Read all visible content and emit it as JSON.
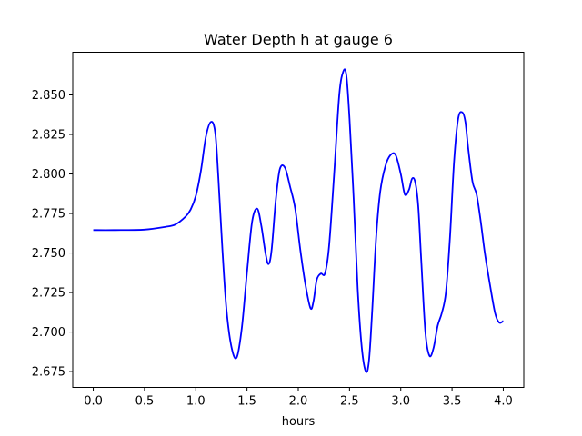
{
  "chart_data": {
    "type": "line",
    "title": "Water Depth h at gauge 6",
    "xlabel": "hours",
    "ylabel": "",
    "xlim": [
      -0.2,
      4.2
    ],
    "ylim": [
      2.665,
      2.877
    ],
    "xticks": [
      0.0,
      0.5,
      1.0,
      1.5,
      2.0,
      2.5,
      3.0,
      3.5,
      4.0
    ],
    "xtick_labels": [
      "0.0",
      "0.5",
      "1.0",
      "1.5",
      "2.0",
      "2.5",
      "3.0",
      "3.5",
      "4.0"
    ],
    "yticks": [
      2.675,
      2.7,
      2.725,
      2.75,
      2.775,
      2.8,
      2.825,
      2.85
    ],
    "ytick_labels": [
      "2.675",
      "2.700",
      "2.725",
      "2.750",
      "2.775",
      "2.800",
      "2.825",
      "2.850"
    ],
    "grid": false,
    "series": [
      {
        "color": "#0000ff",
        "x": [
          0.0,
          0.2,
          0.5,
          0.7,
          0.8,
          0.9,
          0.95,
          1.0,
          1.05,
          1.1,
          1.15,
          1.19,
          1.22,
          1.26,
          1.3,
          1.35,
          1.4,
          1.45,
          1.5,
          1.55,
          1.6,
          1.64,
          1.68,
          1.71,
          1.74,
          1.78,
          1.82,
          1.87,
          1.92,
          1.97,
          2.02,
          2.07,
          2.12,
          2.15,
          2.18,
          2.22,
          2.26,
          2.3,
          2.35,
          2.4,
          2.44,
          2.47,
          2.5,
          2.54,
          2.58,
          2.62,
          2.66,
          2.69,
          2.72,
          2.76,
          2.8,
          2.85,
          2.9,
          2.95,
          3.0,
          3.04,
          3.08,
          3.11,
          3.14,
          3.17,
          3.2,
          3.24,
          3.28,
          3.32,
          3.36,
          3.4,
          3.44,
          3.48,
          3.52,
          3.56,
          3.6,
          3.63,
          3.66,
          3.7,
          3.74,
          3.78,
          3.82,
          3.87,
          3.92,
          3.96,
          4.0
        ],
        "y": [
          2.7645,
          2.7645,
          2.7648,
          2.7665,
          2.768,
          2.773,
          2.7775,
          2.786,
          2.802,
          2.824,
          2.833,
          2.826,
          2.798,
          2.752,
          2.714,
          2.69,
          2.684,
          2.703,
          2.738,
          2.77,
          2.778,
          2.767,
          2.75,
          2.743,
          2.752,
          2.783,
          2.803,
          2.804,
          2.792,
          2.778,
          2.752,
          2.73,
          2.715,
          2.72,
          2.733,
          2.737,
          2.737,
          2.754,
          2.8,
          2.85,
          2.865,
          2.862,
          2.835,
          2.785,
          2.727,
          2.69,
          2.675,
          2.682,
          2.712,
          2.76,
          2.789,
          2.805,
          2.812,
          2.812,
          2.8,
          2.787,
          2.79,
          2.797,
          2.795,
          2.78,
          2.745,
          2.7,
          2.685,
          2.69,
          2.704,
          2.712,
          2.725,
          2.76,
          2.808,
          2.835,
          2.839,
          2.833,
          2.815,
          2.795,
          2.787,
          2.77,
          2.75,
          2.73,
          2.712,
          2.706,
          2.707
        ]
      }
    ]
  }
}
